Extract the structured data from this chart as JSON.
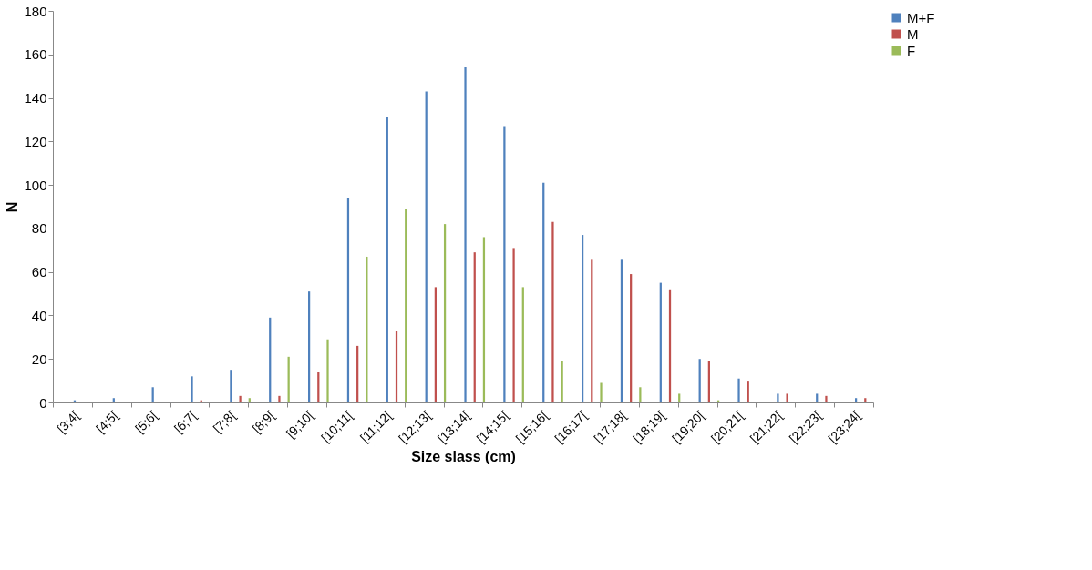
{
  "chart_data": {
    "type": "bar",
    "xlabel": "Size slass (cm)",
    "ylabel": "N",
    "categories": [
      "[3;4[",
      "[4;5[",
      "[5;6[",
      "[6;7[",
      "[7;8[",
      "[8;9[",
      "[9;10[",
      "[10;11[",
      "[11;12[",
      "[12;13[",
      "[13;14[",
      "[14;15[",
      "[15;16[",
      "[16;17[",
      "[17;18[",
      "[18;19[",
      "[19;20[",
      "[20;21[",
      "[21;22[",
      "[22;23[",
      "[23;24["
    ],
    "series": [
      {
        "name": "M+F",
        "color": "#4f81bd",
        "values": [
          1,
          2,
          7,
          12,
          15,
          39,
          51,
          94,
          131,
          143,
          154,
          127,
          101,
          77,
          66,
          55,
          20,
          11,
          4,
          4,
          2
        ]
      },
      {
        "name": "M",
        "color": "#c0504d",
        "values": [
          0,
          0,
          0,
          1,
          3,
          3,
          14,
          26,
          33,
          53,
          69,
          71,
          83,
          66,
          59,
          52,
          19,
          10,
          4,
          3,
          2
        ]
      },
      {
        "name": "F",
        "color": "#9bbb59",
        "values": [
          0,
          0,
          0,
          0,
          2,
          21,
          29,
          67,
          89,
          82,
          76,
          53,
          19,
          9,
          7,
          4,
          1,
          0,
          0,
          0,
          0
        ]
      }
    ],
    "ylim": [
      0,
      180
    ],
    "yticks": [
      0,
      20,
      40,
      60,
      80,
      100,
      120,
      140,
      160,
      180
    ],
    "grid": false,
    "legend": "right"
  }
}
